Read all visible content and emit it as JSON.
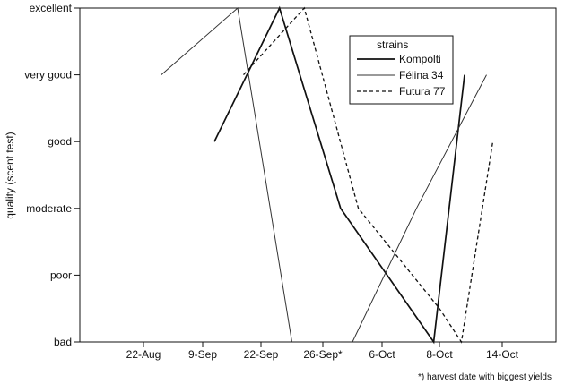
{
  "chart_data": {
    "type": "line",
    "title": "",
    "xlabel": "",
    "ylabel": "quality (scent test)",
    "categories": [
      "22-Aug",
      "9-Sep",
      "22-Sep",
      "26-Sep*",
      "6-Oct",
      "8-Oct",
      "14-Oct"
    ],
    "y_categories": [
      "bad",
      "poor",
      "moderate",
      "good",
      "very good",
      "excellent"
    ],
    "ylim": [
      0,
      5
    ],
    "grid": false,
    "legend": {
      "title": "strains",
      "position": "top-right"
    },
    "series": [
      {
        "name": "Kompolti",
        "style": "solid-thick",
        "color": "#111111",
        "points": [
          [
            1.2,
            3
          ],
          [
            2.3,
            5
          ],
          [
            3.3,
            2
          ],
          [
            4.9,
            0
          ],
          [
            5.4,
            4
          ]
        ]
      },
      {
        "name": "Félina 34",
        "style": "solid-thin",
        "color": "#333333",
        "points": [
          [
            0.3,
            4
          ],
          [
            1.6,
            5
          ],
          [
            2.5,
            0
          ],
          null,
          [
            3.5,
            0
          ],
          [
            4.6,
            2
          ],
          [
            5.75,
            4
          ]
        ]
      },
      {
        "name": "Futura 77",
        "style": "dashed",
        "color": "#111111",
        "points": [
          [
            1.7,
            4
          ],
          [
            2.7,
            5
          ],
          [
            3.6,
            2
          ],
          [
            5.0,
            0.5
          ],
          [
            5.35,
            0
          ],
          [
            5.85,
            3
          ]
        ]
      }
    ],
    "footnote": "*) harvest date with biggest yields"
  }
}
